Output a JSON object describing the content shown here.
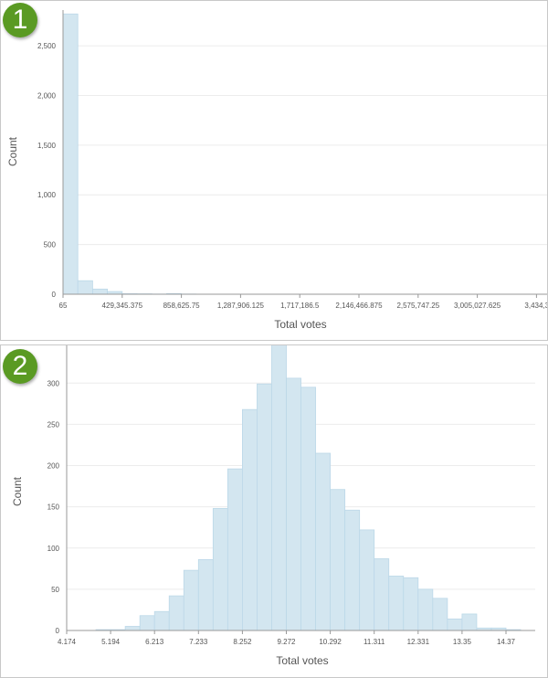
{
  "colors": {
    "bar_fill": "#d3e6f0",
    "bar_stroke": "#bcd8e8",
    "badge": "#5a9a23",
    "grid": "#ececec",
    "axis": "#999999"
  },
  "chart_data": [
    {
      "badge": "1",
      "type": "bar",
      "xlabel": "Total votes",
      "ylabel": "Count",
      "x_tick_labels": [
        "65",
        "429,345.375",
        "858,625.75",
        "1,287,906.125",
        "1,717,186.5",
        "2,146,466.875",
        "2,575,747.25",
        "3,005,027.625",
        "3,434,30"
      ],
      "y_tick_labels": [
        "0",
        "500",
        "1,000",
        "1,500",
        "2,000",
        "2,500"
      ],
      "y_ticks": [
        0,
        500,
        1000,
        1500,
        2000,
        2500
      ],
      "ylim": [
        0,
        2850
      ],
      "bins_per_tick": 4,
      "values": [
        2820,
        136,
        52,
        27,
        5,
        4,
        2,
        6,
        2,
        1,
        0,
        0,
        0,
        0,
        0,
        0,
        0,
        0,
        0,
        0,
        0,
        0,
        0,
        0,
        0,
        0,
        0,
        0,
        0,
        0,
        0,
        0
      ],
      "grid": true
    },
    {
      "badge": "2",
      "type": "bar",
      "xlabel": "Total votes",
      "ylabel": "Count",
      "x_tick_labels": [
        "4.174",
        "5.194",
        "6.213",
        "7.233",
        "8.252",
        "9.272",
        "10.292",
        "11.311",
        "12.331",
        "13.35",
        "14.37"
      ],
      "y_tick_labels": [
        "0",
        "50",
        "100",
        "150",
        "200",
        "250",
        "300"
      ],
      "y_ticks": [
        0,
        50,
        100,
        150,
        200,
        250,
        300
      ],
      "ylim": [
        0,
        348
      ],
      "bins_per_tick": 3,
      "values": [
        0,
        0,
        1,
        1,
        5,
        18,
        23,
        42,
        73,
        86,
        148,
        196,
        268,
        299,
        348,
        306,
        295,
        215,
        171,
        146,
        122,
        87,
        66,
        64,
        50,
        39,
        14,
        20,
        3,
        3,
        1
      ],
      "grid": true
    }
  ]
}
